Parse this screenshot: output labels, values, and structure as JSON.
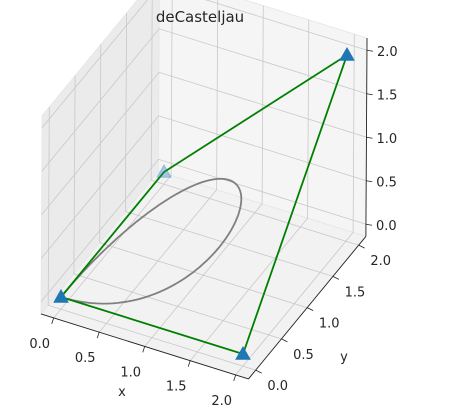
{
  "chart_data": {
    "type": "line",
    "title": "deCasteljau",
    "xlabel": "x",
    "ylabel": "y",
    "zlabel": "",
    "xlim": [
      0.0,
      2.0
    ],
    "ylim": [
      0.0,
      2.0
    ],
    "zlim": [
      0.0,
      2.0
    ],
    "x_ticks": [
      "0.0",
      "0.5",
      "1.0",
      "1.5",
      "2.0"
    ],
    "y_ticks": [
      "0.0",
      "0.5",
      "1.0",
      "1.5",
      "2.0"
    ],
    "z_ticks": [
      "0.0",
      "0.5",
      "1.0",
      "1.5",
      "2.0"
    ],
    "grid": true,
    "series": [
      {
        "kind": "control-polygon",
        "color": "#008000",
        "marker": "triangle",
        "marker_color": "#1f77b4",
        "points": [
          {
            "x": 0,
            "y": 0,
            "z": 0
          },
          {
            "x": 2,
            "y": 0,
            "z": 0
          },
          {
            "x": 2,
            "y": 2,
            "z": 2
          },
          {
            "x": 0,
            "y": 2,
            "z": 0
          },
          {
            "x": 0,
            "y": 0,
            "z": 0
          }
        ]
      },
      {
        "kind": "bezier-curve",
        "color": "#808080",
        "closed": true,
        "control_points": [
          {
            "x": 0,
            "y": 0,
            "z": 0
          },
          {
            "x": 2,
            "y": 0,
            "z": 0
          },
          {
            "x": 2,
            "y": 2,
            "z": 2
          },
          {
            "x": 0,
            "y": 2,
            "z": 0
          },
          {
            "x": 0,
            "y": 0,
            "z": 0
          }
        ]
      }
    ]
  }
}
